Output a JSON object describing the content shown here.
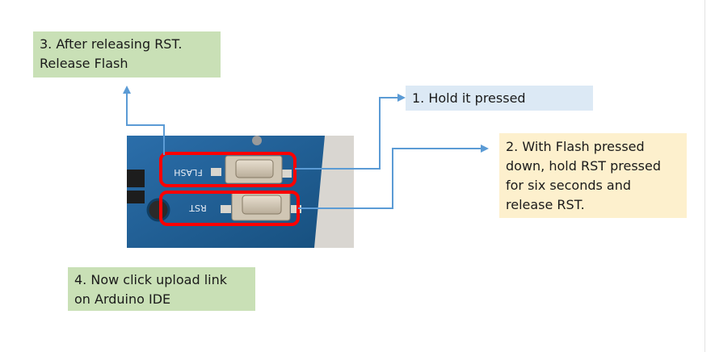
{
  "callouts": {
    "step1": "1. Hold it pressed",
    "step2": "2. With Flash pressed\ndown, hold RST pressed\nfor six seconds and\nrelease RST.",
    "step3": "3. After releasing RST.\nRelease Flash",
    "step4": "4. Now click upload link\non Arduino IDE"
  },
  "board": {
    "flash_label": "FLASH",
    "rst_label": "RST"
  },
  "colors": {
    "connector": "#5b9bd5",
    "highlight": "#ff0000",
    "board": "#1f5d99",
    "green_box": "#c9e0b6",
    "blue_box": "#dce9f5",
    "yellow_box": "#fdf0cd"
  }
}
